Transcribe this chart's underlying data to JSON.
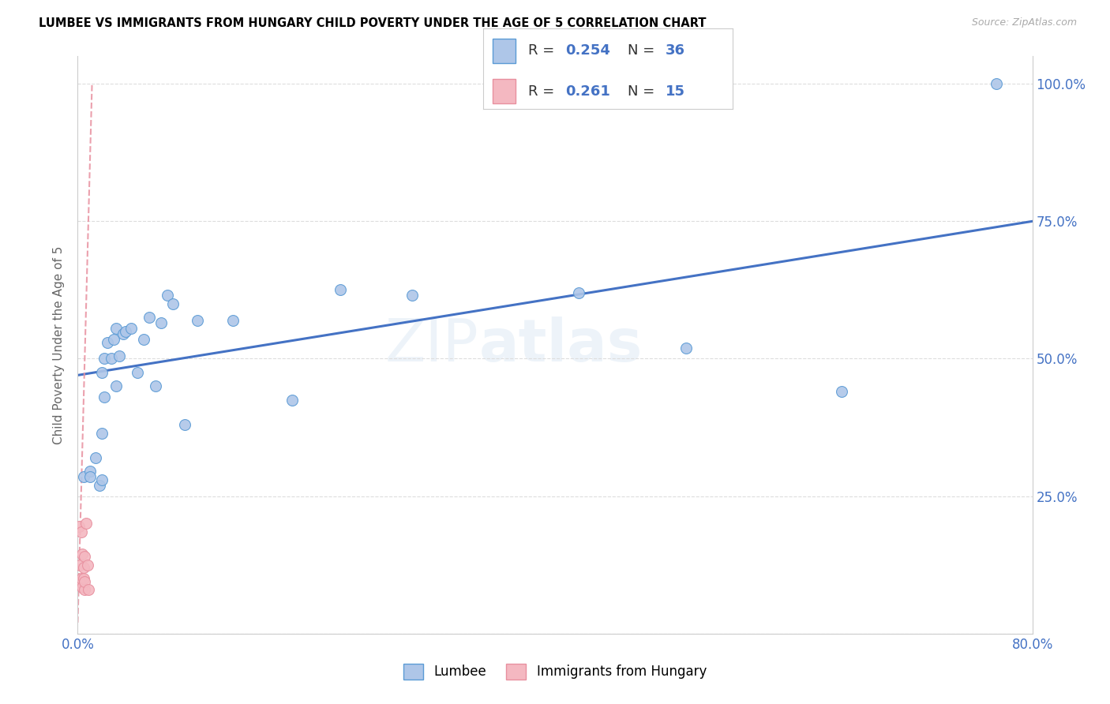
{
  "title": "LUMBEE VS IMMIGRANTS FROM HUNGARY CHILD POVERTY UNDER THE AGE OF 5 CORRELATION CHART",
  "source": "Source: ZipAtlas.com",
  "ylabel": "Child Poverty Under the Age of 5",
  "xlim": [
    0.0,
    0.8
  ],
  "ylim": [
    0.0,
    1.05
  ],
  "x_ticks": [
    0.0,
    0.1,
    0.2,
    0.3,
    0.4,
    0.5,
    0.6,
    0.7,
    0.8
  ],
  "x_tick_labels": [
    "0.0%",
    "",
    "",
    "",
    "",
    "",
    "",
    "",
    "80.0%"
  ],
  "y_ticks": [
    0.0,
    0.25,
    0.5,
    0.75,
    1.0
  ],
  "y_tick_labels": [
    "",
    "25.0%",
    "50.0%",
    "75.0%",
    "100.0%"
  ],
  "lumbee_color": "#aec6e8",
  "hungary_color": "#f4b8c1",
  "lumbee_edge": "#5b9bd5",
  "hungary_edge": "#e8909f",
  "trend_blue": "#4472c4",
  "trend_pink": "#e8909f",
  "lumbee_label": "Lumbee",
  "hungary_label": "Immigrants from Hungary",
  "lumbee_x": [
    0.005,
    0.01,
    0.01,
    0.015,
    0.018,
    0.02,
    0.02,
    0.02,
    0.022,
    0.022,
    0.025,
    0.028,
    0.03,
    0.032,
    0.032,
    0.035,
    0.038,
    0.04,
    0.045,
    0.05,
    0.055,
    0.06,
    0.065,
    0.07,
    0.075,
    0.08,
    0.09,
    0.1,
    0.13,
    0.18,
    0.22,
    0.28,
    0.42,
    0.51,
    0.64,
    0.77
  ],
  "lumbee_y": [
    0.285,
    0.295,
    0.285,
    0.32,
    0.27,
    0.28,
    0.365,
    0.475,
    0.5,
    0.43,
    0.53,
    0.5,
    0.535,
    0.555,
    0.45,
    0.505,
    0.545,
    0.55,
    0.555,
    0.475,
    0.535,
    0.575,
    0.45,
    0.565,
    0.615,
    0.6,
    0.38,
    0.57,
    0.57,
    0.425,
    0.625,
    0.615,
    0.62,
    0.52,
    0.44,
    1.0
  ],
  "hungary_x": [
    0.001,
    0.002,
    0.002,
    0.003,
    0.003,
    0.004,
    0.004,
    0.005,
    0.005,
    0.006,
    0.006,
    0.006,
    0.007,
    0.008,
    0.009
  ],
  "hungary_y": [
    0.195,
    0.125,
    0.095,
    0.185,
    0.1,
    0.085,
    0.145,
    0.1,
    0.12,
    0.08,
    0.095,
    0.14,
    0.2,
    0.125,
    0.08
  ],
  "watermark": "ZIPatlas",
  "marker_size": 100,
  "r1_val": "0.254",
  "n1_val": "36",
  "r2_val": "0.261",
  "n2_val": "15"
}
